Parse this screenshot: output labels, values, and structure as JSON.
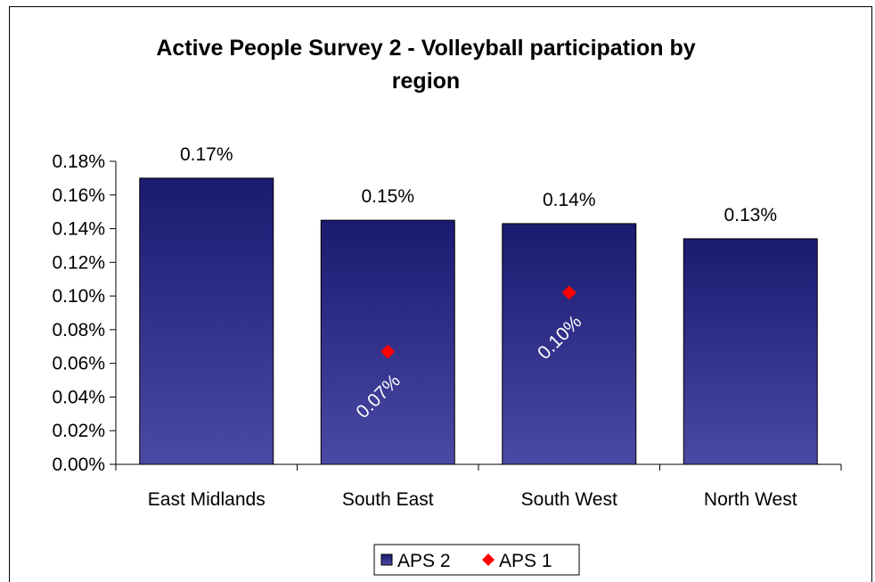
{
  "chart_data": {
    "type": "bar",
    "title": "Active People Survey 2 - Volleyball participation by region",
    "title_lines": [
      "Active People Survey 2 - Volleyball participation by",
      "region"
    ],
    "categories": [
      "East Midlands",
      "South East",
      "South West",
      "North West"
    ],
    "series": [
      {
        "name": "APS 2",
        "kind": "bar",
        "values": [
          0.17,
          0.145,
          0.143,
          0.134
        ],
        "labels": [
          "0.17%",
          "0.15%",
          "0.14%",
          "0.13%"
        ],
        "color_top": "#1a1a70",
        "color_bottom": "#4a4aa6"
      },
      {
        "name": "APS 1",
        "kind": "marker",
        "marker": "diamond",
        "values": [
          null,
          0.067,
          0.102,
          null
        ],
        "labels": [
          null,
          "0.07%",
          "0.10%",
          null
        ],
        "color": "#ff0000"
      }
    ],
    "ylim": [
      0,
      0.18
    ],
    "yticks": [
      0,
      0.02,
      0.04,
      0.06,
      0.08,
      0.1,
      0.12,
      0.14,
      0.16,
      0.18
    ],
    "ytick_labels": [
      "0.00%",
      "0.02%",
      "0.04%",
      "0.06%",
      "0.08%",
      "0.10%",
      "0.12%",
      "0.14%",
      "0.16%",
      "0.18%"
    ],
    "xlabel": "",
    "ylabel": "",
    "grid": false,
    "legend_position": "bottom"
  }
}
